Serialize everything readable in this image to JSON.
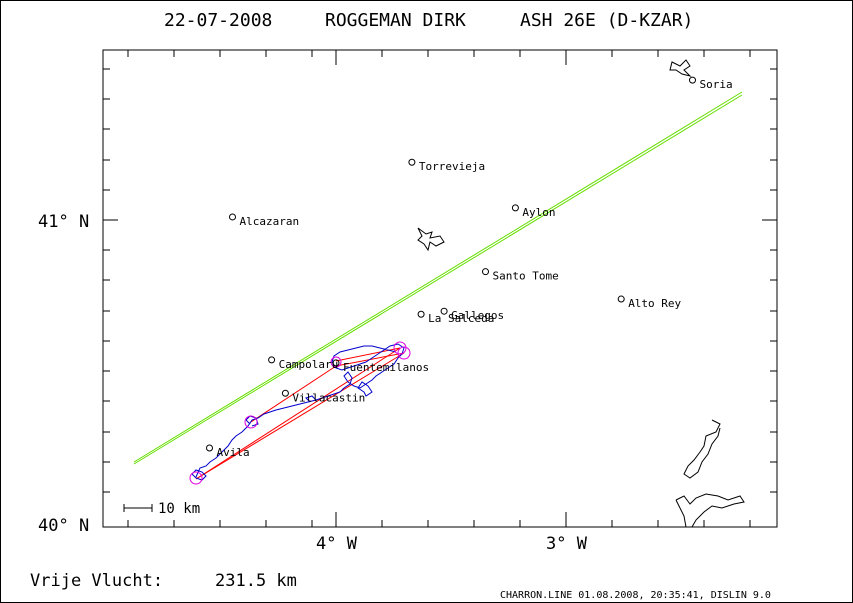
{
  "header": {
    "date": "22-07-2008",
    "pilot": "ROGGEMAN DIRK",
    "glider": "ASH 26E (D-KZAR)"
  },
  "axes": {
    "lat_labels": [
      "41° N",
      "40° N"
    ],
    "lon_labels": [
      "4° W",
      "3° W"
    ]
  },
  "scale_label": "10 km",
  "footer": {
    "free_flight_label": "Vrije Vlucht:",
    "free_flight_value": "231.5 km",
    "credit": "CHARRON.LINE 01.08.2008, 20:35:41, DISLIN 9.0"
  },
  "towns": [
    {
      "name": "Soria",
      "lon": -2.45,
      "lat": 41.46
    },
    {
      "name": "Torrevieja",
      "lon": -3.67,
      "lat": 41.19
    },
    {
      "name": "Aylon",
      "lon": -3.22,
      "lat": 41.04
    },
    {
      "name": "Alcazaran",
      "lon": -4.45,
      "lat": 41.01
    },
    {
      "name": "Santo Tome",
      "lon": -3.35,
      "lat": 40.83
    },
    {
      "name": "Alto Rey",
      "lon": -2.76,
      "lat": 40.74
    },
    {
      "name": "La Salceda",
      "lon": -3.63,
      "lat": 40.69
    },
    {
      "name": "Gallegos",
      "lon": -3.53,
      "lat": 40.7
    },
    {
      "name": "Campolaru",
      "lon": -4.28,
      "lat": 40.54
    },
    {
      "name": "Fuentemilanos",
      "lon": -4.0,
      "lat": 40.53
    },
    {
      "name": "Villacastin",
      "lon": -4.22,
      "lat": 40.43
    },
    {
      "name": "Avila",
      "lon": -4.55,
      "lat": 40.25
    }
  ],
  "colors": {
    "frame": "#000000",
    "track": "#0000cc",
    "task": "#ff0000",
    "free_flight": "#66dd00",
    "turnpoint": "#dd00dd"
  }
}
